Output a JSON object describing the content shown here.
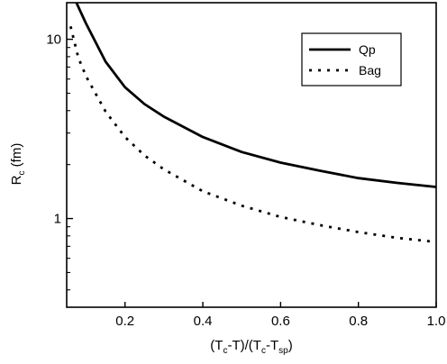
{
  "chart_data": {
    "type": "line",
    "x_scale": "linear",
    "y_scale": "log",
    "xlim": [
      0.05,
      1.0
    ],
    "ylim": [
      0.32,
      16
    ],
    "x_ticks": [
      0.2,
      0.4,
      0.6,
      0.8,
      1.0
    ],
    "x_tick_labels": [
      "0.2",
      "0.4",
      "0.6",
      "0.8",
      "1.0"
    ],
    "y_major_ticks": [
      1,
      10
    ],
    "y_tick_labels": [
      "1",
      "10"
    ],
    "y_minor_ticks": [
      0.4,
      0.5,
      0.6,
      0.7,
      0.8,
      0.9,
      2,
      3,
      4,
      5,
      6,
      7,
      8,
      9
    ],
    "xlabel": {
      "p1": "(T",
      "s1": "c",
      "p2": "-T)/(T",
      "s2": "c",
      "p3": "-T",
      "s3": "sp",
      "p4": ")"
    },
    "ylabel": {
      "p1": "R",
      "s1": "c",
      "p2": " (fm)"
    },
    "grid": false,
    "legend_position": "top-right",
    "series": [
      {
        "name": "Qp",
        "style": "solid",
        "color": "#000000",
        "x": [
          0.075,
          0.1,
          0.15,
          0.2,
          0.25,
          0.3,
          0.4,
          0.5,
          0.6,
          0.7,
          0.8,
          0.9,
          1.0
        ],
        "y": [
          16.0,
          12.2,
          7.5,
          5.4,
          4.35,
          3.7,
          2.85,
          2.35,
          2.05,
          1.85,
          1.68,
          1.58,
          1.5
        ]
      },
      {
        "name": "Bag",
        "style": "dotted",
        "color": "#000000",
        "x": [
          0.06,
          0.08,
          0.1,
          0.15,
          0.2,
          0.25,
          0.3,
          0.4,
          0.5,
          0.6,
          0.7,
          0.8,
          0.9,
          1.0
        ],
        "y": [
          11.8,
          7.9,
          6.2,
          3.95,
          2.85,
          2.25,
          1.88,
          1.42,
          1.18,
          1.02,
          0.92,
          0.84,
          0.78,
          0.74
        ]
      }
    ]
  }
}
